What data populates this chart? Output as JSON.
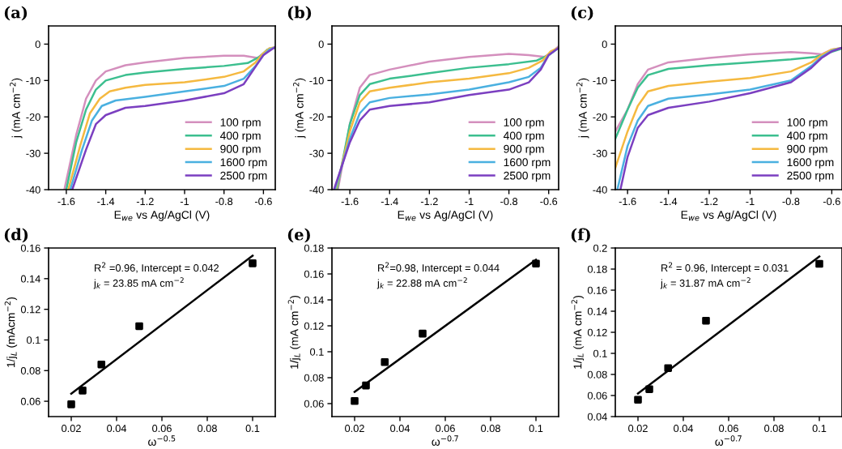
{
  "chart_data": [
    {
      "type": "line",
      "title": "(a)",
      "xlabel": "E$_{we}$ vs Ag/AgCl (V)",
      "ylabel": "j (mA cm$^{−2}$)",
      "xlim": [
        -1.69,
        -0.54
      ],
      "ylim": [
        -40,
        5
      ],
      "xticks": [
        -1.6,
        -1.4,
        -1.2,
        -1,
        -0.8,
        -0.6
      ],
      "yticks": [
        -40,
        -30,
        -20,
        -10,
        0
      ],
      "legend": "bottom right",
      "series": [
        {
          "name": "100 rpm",
          "color": "#d48fbd",
          "x": [
            -1.61,
            -1.55,
            -1.5,
            -1.45,
            -1.4,
            -1.3,
            -1.2,
            -1.0,
            -0.8,
            -0.7,
            -0.63,
            -0.6,
            -0.57,
            -0.54
          ],
          "values": [
            -40,
            -25,
            -15,
            -10,
            -7.5,
            -5.8,
            -5,
            -3.8,
            -3.2,
            -3.2,
            -3.8,
            -2.5,
            -1.2,
            -1
          ]
        },
        {
          "name": "400 rpm",
          "color": "#3cbf8f",
          "x": [
            -1.6,
            -1.55,
            -1.5,
            -1.45,
            -1.4,
            -1.3,
            -1.2,
            -1.0,
            -0.8,
            -0.68,
            -0.62,
            -0.58,
            -0.54
          ],
          "values": [
            -40,
            -27,
            -18,
            -12.5,
            -10,
            -8.5,
            -7.8,
            -6.8,
            -6,
            -5.2,
            -3.5,
            -1.5,
            -1
          ]
        },
        {
          "name": "900 rpm",
          "color": "#f5b940",
          "x": [
            -1.59,
            -1.53,
            -1.48,
            -1.43,
            -1.38,
            -1.3,
            -1.2,
            -1.0,
            -0.8,
            -0.7,
            -0.64,
            -0.6,
            -0.57,
            -0.54
          ],
          "values": [
            -40,
            -28,
            -19,
            -15,
            -13,
            -12,
            -11.2,
            -10.5,
            -9,
            -7.5,
            -5,
            -2.5,
            -1.2,
            -0.8
          ]
        },
        {
          "name": "1600 rpm",
          "color": "#4ab0e0",
          "x": [
            -1.58,
            -1.52,
            -1.47,
            -1.42,
            -1.35,
            -1.2,
            -1.0,
            -0.8,
            -0.7,
            -0.64,
            -0.6,
            -0.57,
            -0.54
          ],
          "values": [
            -40,
            -29,
            -21,
            -17,
            -15.5,
            -14.5,
            -13,
            -11.5,
            -9.5,
            -6,
            -3,
            -1.5,
            -0.8
          ]
        },
        {
          "name": "2500 rpm",
          "color": "#7b3fc0",
          "x": [
            -1.57,
            -1.5,
            -1.45,
            -1.4,
            -1.3,
            -1.2,
            -1.0,
            -0.8,
            -0.7,
            -0.65,
            -0.6,
            -0.56,
            -0.54
          ],
          "values": [
            -40,
            -29,
            -22,
            -19.5,
            -17.5,
            -17,
            -15.5,
            -13.5,
            -11,
            -7,
            -3,
            -1.5,
            -0.8
          ]
        }
      ]
    },
    {
      "type": "line",
      "title": "(b)",
      "xlabel": "E$_{we}$ vs Ag/AgCl (V)",
      "ylabel": "j (mA cm$^{−2}$)",
      "xlim": [
        -1.69,
        -0.55
      ],
      "ylim": [
        -40,
        5
      ],
      "xticks": [
        -1.6,
        -1.4,
        -1.2,
        -1,
        -0.8,
        -0.6
      ],
      "yticks": [
        -40,
        -30,
        -20,
        -10,
        0
      ],
      "legend": "bottom right",
      "series": [
        {
          "name": "100 rpm",
          "color": "#d48fbd",
          "x": [
            -1.66,
            -1.6,
            -1.55,
            -1.5,
            -1.4,
            -1.2,
            -1.0,
            -0.8,
            -0.7,
            -0.62,
            -0.58,
            -0.55
          ],
          "values": [
            -40,
            -22,
            -12,
            -8.5,
            -7,
            -4.8,
            -3.5,
            -2.7,
            -3,
            -3.5,
            -2,
            -0.6
          ]
        },
        {
          "name": "400 rpm",
          "color": "#3cbf8f",
          "x": [
            -1.665,
            -1.6,
            -1.55,
            -1.5,
            -1.4,
            -1.2,
            -1.0,
            -0.8,
            -0.66,
            -0.6,
            -0.55
          ],
          "values": [
            -40,
            -22,
            -14,
            -11,
            -9.5,
            -8,
            -6.5,
            -5.5,
            -4.5,
            -3,
            -1
          ]
        },
        {
          "name": "900 rpm",
          "color": "#f5b940",
          "x": [
            -1.67,
            -1.6,
            -1.55,
            -1.5,
            -1.4,
            -1.2,
            -1.0,
            -0.8,
            -0.7,
            -0.63,
            -0.59,
            -0.55
          ],
          "values": [
            -40,
            -24,
            -16,
            -13,
            -12,
            -10.5,
            -9.5,
            -8,
            -6.5,
            -4.5,
            -2,
            -1
          ]
        },
        {
          "name": "1600 rpm",
          "color": "#4ab0e0",
          "x": [
            -1.675,
            -1.6,
            -1.55,
            -1.5,
            -1.4,
            -1.2,
            -1.0,
            -0.8,
            -0.7,
            -0.64,
            -0.6,
            -0.55
          ],
          "values": [
            -40,
            -26,
            -19,
            -16,
            -14.8,
            -13.8,
            -12.5,
            -10.5,
            -9,
            -6.5,
            -3,
            -1
          ]
        },
        {
          "name": "2500 rpm",
          "color": "#7b3fc0",
          "x": [
            -1.68,
            -1.6,
            -1.55,
            -1.5,
            -1.4,
            -1.2,
            -1.0,
            -0.8,
            -0.7,
            -0.64,
            -0.6,
            -0.55
          ],
          "values": [
            -40,
            -27,
            -21,
            -18,
            -17,
            -16,
            -14,
            -12.5,
            -10.5,
            -7,
            -3,
            -1
          ]
        }
      ]
    },
    {
      "type": "line",
      "title": "(c)",
      "xlabel": "E$_{we}$ vs Ag/AgCl (V)",
      "ylabel": "j (mA cm$^{−2}$)",
      "xlim": [
        -1.66,
        -0.55
      ],
      "ylim": [
        -40,
        5
      ],
      "xticks": [
        -1.6,
        -1.4,
        -1.2,
        -1,
        -0.8,
        -0.6
      ],
      "yticks": [
        -40,
        -30,
        -20,
        -10,
        0
      ],
      "legend": "bottom right",
      "series": [
        {
          "name": "100 rpm",
          "color": "#d48fbd",
          "x": [
            -1.66,
            -1.6,
            -1.55,
            -1.5,
            -1.4,
            -1.2,
            -1.0,
            -0.8,
            -0.7,
            -0.65,
            -0.6,
            -0.55
          ],
          "values": [
            -24,
            -18,
            -11,
            -7,
            -5,
            -3.8,
            -2.8,
            -2.2,
            -2.5,
            -2.8,
            -1.5,
            -1
          ]
        },
        {
          "name": "400 rpm",
          "color": "#3cbf8f",
          "x": [
            -1.66,
            -1.6,
            -1.55,
            -1.5,
            -1.4,
            -1.2,
            -1.0,
            -0.8,
            -0.68,
            -0.62,
            -0.55
          ],
          "values": [
            -26,
            -18,
            -12,
            -8.5,
            -6.8,
            -5.8,
            -5,
            -4.2,
            -3.5,
            -2.5,
            -1.2
          ]
        },
        {
          "name": "900 rpm",
          "color": "#f5b940",
          "x": [
            -1.66,
            -1.6,
            -1.55,
            -1.5,
            -1.4,
            -1.2,
            -1.0,
            -0.8,
            -0.7,
            -0.65,
            -0.6,
            -0.55
          ],
          "values": [
            -34,
            -24,
            -17,
            -13,
            -11.5,
            -10.3,
            -9.3,
            -7.5,
            -5,
            -3,
            -1.5,
            -1
          ]
        },
        {
          "name": "1600 rpm",
          "color": "#4ab0e0",
          "x": [
            -1.65,
            -1.6,
            -1.55,
            -1.5,
            -1.4,
            -1.2,
            -1.0,
            -0.8,
            -0.7,
            -0.65,
            -0.6,
            -0.55
          ],
          "values": [
            -40,
            -28,
            -21,
            -17,
            -15,
            -13.8,
            -12.5,
            -10,
            -6,
            -3.5,
            -1.8,
            -1
          ]
        },
        {
          "name": "2500 rpm",
          "color": "#7b3fc0",
          "x": [
            -1.635,
            -1.6,
            -1.55,
            -1.5,
            -1.4,
            -1.2,
            -1.0,
            -0.8,
            -0.7,
            -0.65,
            -0.6,
            -0.55
          ],
          "values": [
            -40,
            -31,
            -23,
            -19.5,
            -17.5,
            -15.8,
            -13.5,
            -10.5,
            -6.5,
            -3.8,
            -2,
            -1
          ]
        }
      ]
    },
    {
      "type": "scatter",
      "title": "(d)",
      "xlabel": "ω$^{−0.5}$",
      "ylabel": "1/j$_{L}$ (mAcm$^{−2}$)",
      "annotations": [
        "R$^{2}$ =0.96, Intercept = 0.042",
        "j$_{k}$ = 23.85 mA cm$^{−2}$"
      ],
      "xlim": [
        0.01,
        0.11
      ],
      "ylim": [
        0.05,
        0.16
      ],
      "xticks": [
        0.02,
        0.04,
        0.06,
        0.08,
        0.1
      ],
      "yticks": [
        0.06,
        0.08,
        0.1,
        0.12,
        0.14,
        0.16
      ],
      "series": [
        {
          "color": "#000000",
          "marker": "square",
          "x": [
            0.02,
            0.025,
            0.0333,
            0.05,
            0.1
          ],
          "values": [
            0.058,
            0.067,
            0.084,
            0.109,
            0.15
          ]
        },
        {
          "type": "line",
          "color": "#000000",
          "x": [
            0.02,
            0.1
          ],
          "values": [
            0.065,
            0.155
          ]
        }
      ]
    },
    {
      "type": "scatter",
      "title": "(e)",
      "xlabel": "ω$^{−0.7}$",
      "ylabel": "1/j$_{L}$ (mA cm$^{−2}$)",
      "annotations": [
        "R$^{2}$=0.98, Intercept = 0.044",
        "j$_{k}$ = 22.88 mA cm$^{−2}$"
      ],
      "xlim": [
        0.01,
        0.11
      ],
      "ylim": [
        0.05,
        0.18
      ],
      "xticks": [
        0.02,
        0.04,
        0.06,
        0.08,
        0.1
      ],
      "yticks": [
        0.06,
        0.08,
        0.1,
        0.12,
        0.14,
        0.16,
        0.18
      ],
      "series": [
        {
          "color": "#000000",
          "marker": "square",
          "x": [
            0.02,
            0.025,
            0.0333,
            0.05,
            0.1
          ],
          "values": [
            0.062,
            0.074,
            0.092,
            0.114,
            0.168
          ]
        },
        {
          "type": "line",
          "color": "#000000",
          "x": [
            0.02,
            0.1
          ],
          "values": [
            0.069,
            0.171
          ]
        }
      ]
    },
    {
      "type": "scatter",
      "title": "(f)",
      "xlabel": "ω$^{−0.7}$",
      "ylabel": "1/j$_{L}$ (mA cm$^{−2}$)",
      "annotations": [
        "R$^{2}$ = 0.96, Intercept = 0.031",
        "j$_{k}$ = 31.87 mA cm$^{−2}$"
      ],
      "xlim": [
        0.01,
        0.11
      ],
      "ylim": [
        0.04,
        0.2
      ],
      "xticks": [
        0.02,
        0.04,
        0.06,
        0.08,
        0.1
      ],
      "yticks": [
        0.04,
        0.06,
        0.08,
        0.1,
        0.12,
        0.14,
        0.16,
        0.18,
        0.2
      ],
      "series": [
        {
          "color": "#000000",
          "marker": "square",
          "x": [
            0.02,
            0.025,
            0.0333,
            0.05,
            0.1
          ],
          "values": [
            0.056,
            0.066,
            0.086,
            0.131,
            0.185
          ]
        },
        {
          "type": "line",
          "color": "#000000",
          "x": [
            0.02,
            0.1
          ],
          "values": [
            0.062,
            0.192
          ]
        }
      ]
    }
  ]
}
